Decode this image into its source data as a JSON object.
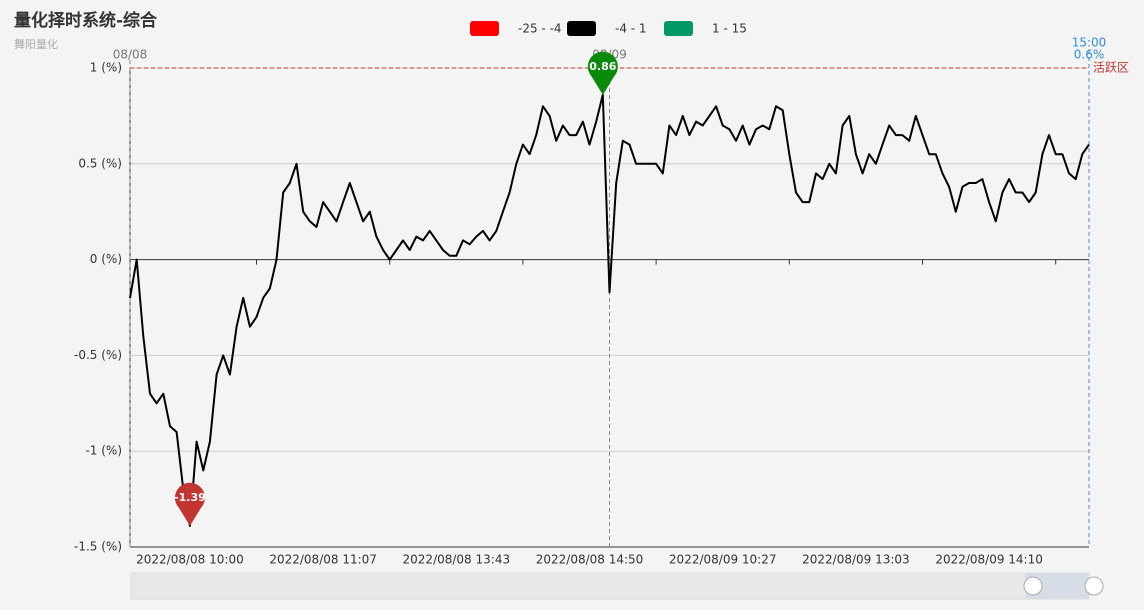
{
  "chart_data": {
    "type": "line",
    "title": "量化择时系统-综合",
    "subtitle": "舞阳量化",
    "legend": [
      {
        "label": "-25 - -4",
        "color": "#ff0000"
      },
      {
        "label": "-4 - 1",
        "color": "#000000"
      },
      {
        "label": "1 - 15",
        "color": "#009966"
      }
    ],
    "categories": [
      null,
      null,
      null,
      null,
      null,
      null,
      null,
      null,
      null,
      "2022/08/08 10:00",
      null,
      null,
      null,
      null,
      null,
      null,
      null,
      null,
      null,
      null,
      null,
      null,
      null,
      null,
      null,
      null,
      null,
      null,
      null,
      "2022/08/08 11:07",
      null,
      null,
      null,
      null,
      null,
      null,
      null,
      null,
      null,
      null,
      null,
      null,
      null,
      null,
      null,
      null,
      null,
      null,
      null,
      "2022/08/08 13:43",
      null,
      null,
      null,
      null,
      null,
      null,
      null,
      null,
      null,
      null,
      null,
      null,
      null,
      null,
      null,
      null,
      null,
      null,
      null,
      "2022/08/08 14:50",
      null,
      null,
      null,
      null,
      null,
      null,
      null,
      null,
      null,
      null,
      null,
      null,
      null,
      null,
      null,
      null,
      null,
      null,
      null,
      "2022/08/09 10:27",
      null,
      null,
      null,
      null,
      null,
      null,
      null,
      null,
      null,
      null,
      null,
      null,
      null,
      null,
      null,
      null,
      null,
      null,
      null,
      "2022/08/09 13:03",
      null,
      null,
      null,
      null,
      null,
      null,
      null,
      null,
      null,
      null,
      null,
      null,
      null,
      null,
      null,
      null,
      null,
      null,
      null,
      "2022/08/09 14:10",
      null,
      null,
      null,
      null,
      null,
      null,
      null,
      null,
      null,
      null,
      null,
      null,
      null,
      null,
      null
    ],
    "series": [
      {
        "name": "综合",
        "color": "#000000",
        "values": [
          -0.2,
          0.0,
          -0.4,
          -0.7,
          -0.75,
          -0.7,
          -0.87,
          -0.9,
          -1.2,
          -1.39,
          -0.95,
          -1.1,
          -0.95,
          -0.6,
          -0.5,
          -0.6,
          -0.35,
          -0.2,
          -0.35,
          -0.3,
          -0.2,
          -0.15,
          0.0,
          0.35,
          0.4,
          0.5,
          0.25,
          0.2,
          0.17,
          0.3,
          0.25,
          0.2,
          0.3,
          0.4,
          0.3,
          0.2,
          0.25,
          0.12,
          0.05,
          0.0,
          0.05,
          0.1,
          0.05,
          0.12,
          0.1,
          0.15,
          0.1,
          0.05,
          0.02,
          0.02,
          0.1,
          0.08,
          0.12,
          0.15,
          0.1,
          0.15,
          0.25,
          0.35,
          0.5,
          0.6,
          0.55,
          0.65,
          0.8,
          0.75,
          0.62,
          0.7,
          0.65,
          0.65,
          0.72,
          0.6,
          0.72,
          0.86,
          -0.17,
          0.4,
          0.62,
          0.6,
          0.5,
          0.5,
          0.5,
          0.5,
          0.45,
          0.7,
          0.65,
          0.75,
          0.65,
          0.72,
          0.7,
          0.75,
          0.8,
          0.7,
          0.68,
          0.62,
          0.7,
          0.6,
          0.68,
          0.7,
          0.68,
          0.8,
          0.78,
          0.55,
          0.35,
          0.3,
          0.3,
          0.45,
          0.42,
          0.5,
          0.45,
          0.7,
          0.75,
          0.55,
          0.45,
          0.55,
          0.5,
          0.6,
          0.7,
          0.65,
          0.65,
          0.62,
          0.75,
          0.65,
          0.55,
          0.55,
          0.45,
          0.38,
          0.25,
          0.38,
          0.4,
          0.4,
          0.42,
          0.3,
          0.2,
          0.35,
          0.42,
          0.35,
          0.35,
          0.3,
          0.35,
          0.55,
          0.65,
          0.55,
          0.55,
          0.45,
          0.42,
          0.55,
          0.6
        ]
      }
    ],
    "ylim": [
      -1.5,
      1
    ],
    "yticks": [
      {
        "value": -1.5,
        "label": "-1.5 (%)"
      },
      {
        "value": -1,
        "label": "-1 (%)"
      },
      {
        "value": -0.5,
        "label": "-0.5 (%)"
      },
      {
        "value": 0,
        "label": "0 (%)"
      },
      {
        "value": 0.5,
        "label": "0.5 (%)"
      },
      {
        "value": 1,
        "label": "1 (%)"
      }
    ],
    "grid": true,
    "mark_line": {
      "value": 1,
      "label": "活跃区"
    },
    "day_markers": [
      "08/08",
      "08/09"
    ],
    "end_label": {
      "time": "15:00",
      "value": "0.6%"
    }
  }
}
